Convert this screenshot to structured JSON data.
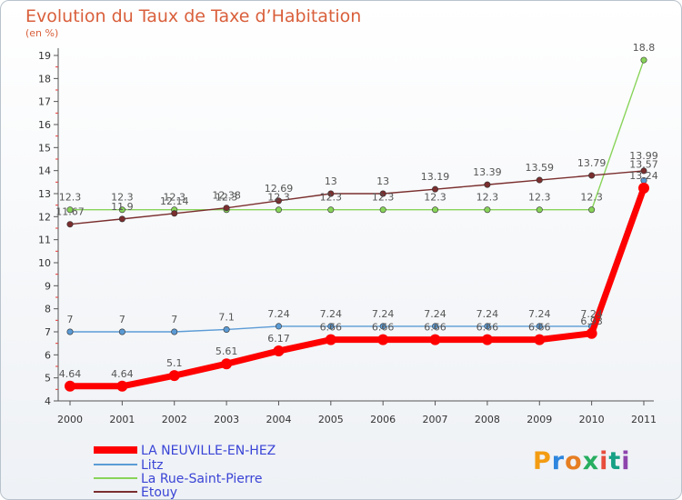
{
  "header": {
    "title": "Evolution du Taux de Taxe d’Habitation",
    "subtitle": "(en %)"
  },
  "logo": {
    "text": "Proxiti"
  },
  "chart_data": {
    "type": "line",
    "title": "Evolution du Taux de Taxe d’Habitation",
    "ylabel": "(en %)",
    "xlabel": "",
    "x": [
      "2000",
      "2001",
      "2002",
      "2003",
      "2004",
      "2005",
      "2006",
      "2007",
      "2008",
      "2009",
      "2010",
      "2011"
    ],
    "ylim": [
      4,
      19
    ],
    "yticks": [
      4,
      5,
      6,
      7,
      8,
      9,
      10,
      11,
      12,
      13,
      14,
      15,
      16,
      17,
      18,
      19
    ],
    "legend_position": "bottom-left",
    "grid": false,
    "series": [
      {
        "name": "LA NEUVILLE-EN-HEZ",
        "color": "#ff0000",
        "values": [
          4.64,
          4.64,
          5.1,
          5.61,
          6.17,
          6.66,
          6.66,
          6.66,
          6.66,
          6.66,
          6.93,
          13.24
        ],
        "labels": [
          "4.64",
          "4.64",
          "5.1",
          "5.61",
          "6.17",
          "6.66",
          "6.66",
          "6.66",
          "6.66",
          "6.66",
          "6.93",
          "13.24"
        ]
      },
      {
        "name": "Litz",
        "color": "#5b9bd5",
        "values": [
          7,
          7,
          7,
          7.1,
          7.24,
          7.24,
          7.24,
          7.24,
          7.24,
          7.24,
          7.24,
          13.57
        ],
        "labels": [
          "7",
          "7",
          "7",
          "7.1",
          "7.24",
          "7.24",
          "7.24",
          "7.24",
          "7.24",
          "7.24",
          "7.24",
          "13.57"
        ]
      },
      {
        "name": "La Rue-Saint-Pierre",
        "color": "#88d45a",
        "values": [
          12.3,
          12.3,
          12.3,
          12.3,
          12.3,
          12.3,
          12.3,
          12.3,
          12.3,
          12.3,
          12.3,
          18.8
        ],
        "labels": [
          "12.3",
          "12.3",
          "12.3",
          "12.3",
          "12.3",
          "12.3",
          "12.3",
          "12.3",
          "12.3",
          "12.3",
          "12.3",
          "18.8"
        ]
      },
      {
        "name": "Etouy",
        "color": "#7a2e2e",
        "values": [
          11.67,
          11.9,
          12.14,
          12.38,
          12.69,
          13,
          13,
          13.19,
          13.39,
          13.59,
          13.79,
          13.99
        ],
        "labels": [
          "11.67",
          "11.9",
          "12.14",
          "12.38",
          "12.69",
          "13",
          "13",
          "13.19",
          "13.39",
          "13.59",
          "13.79",
          "13.99"
        ]
      }
    ]
  }
}
